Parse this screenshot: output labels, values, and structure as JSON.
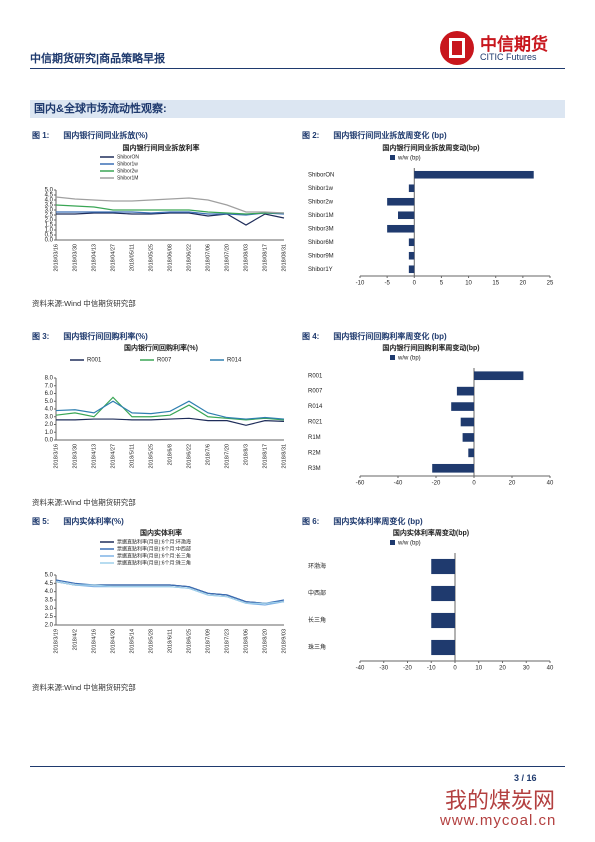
{
  "header": {
    "title": "中信期货研究|商品策略早报",
    "logo_cn": "中信期货",
    "logo_en": "CITIC Futures"
  },
  "section": "国内&全球市场流动性观察:",
  "figures": [
    {
      "label": "图 1:",
      "title": "国内银行间同业拆放(%)"
    },
    {
      "label": "图 2:",
      "title": "国内银行间同业拆放周变化 (bp)"
    },
    {
      "label": "图 3:",
      "title": "国内银行间回购利率(%)"
    },
    {
      "label": "图 4:",
      "title": "国内银行间回购利率周变化 (bp)"
    },
    {
      "label": "图 5:",
      "title": "国内实体利率(%)"
    },
    {
      "label": "图 6:",
      "title": "国内实体利率周变化 (bp)"
    }
  ],
  "sources": [
    "资料来源:Wind 中信期货研究部",
    "资料来源:Wind 中信期货研究部",
    "资料来源:Wind 中信期货研究部"
  ],
  "footer": {
    "page": "3 / 16"
  },
  "watermark": {
    "name": "我的煤炭网",
    "url": "www.mycoal.cn"
  },
  "chart_data": [
    {
      "type": "line",
      "title": "国内银行间同业拆放利率",
      "categories": [
        "2018/03/16",
        "2018/03/30",
        "2018/04/13",
        "2018/04/27",
        "2018/05/11",
        "2018/05/25",
        "2018/06/08",
        "2018/06/22",
        "2018/07/06",
        "2018/07/20",
        "2018/08/03",
        "2018/08/17",
        "2018/08/31"
      ],
      "series": [
        {
          "name": "ShiborON",
          "color": "#1f2d5a",
          "values": [
            2.6,
            2.6,
            2.7,
            2.7,
            2.6,
            2.6,
            2.7,
            2.7,
            2.4,
            2.6,
            1.5,
            2.6,
            2.2
          ]
        },
        {
          "name": "Shibor1w",
          "color": "#3b6fb6",
          "values": [
            2.8,
            2.8,
            2.8,
            2.8,
            2.8,
            2.7,
            2.8,
            2.8,
            2.6,
            2.6,
            2.5,
            2.7,
            2.6
          ]
        },
        {
          "name": "Shibor2w",
          "color": "#3aa655",
          "values": [
            3.5,
            3.4,
            3.3,
            3.0,
            3.0,
            3.0,
            3.0,
            3.0,
            2.8,
            2.7,
            2.6,
            2.7,
            2.7
          ]
        },
        {
          "name": "Shibor1M",
          "color": "#a0a0a0",
          "values": [
            4.3,
            4.1,
            4.0,
            3.9,
            3.9,
            4.0,
            4.1,
            4.2,
            4.0,
            3.5,
            2.8,
            2.8,
            2.7
          ]
        }
      ],
      "ylim": [
        0,
        5
      ],
      "yticks": [
        {
          "value": 0,
          "label": "0.0"
        },
        0.5,
        {
          "value": 1,
          "label": "1.0"
        },
        1.5,
        {
          "value": 2,
          "label": "2.0"
        },
        2.5,
        {
          "value": 3,
          "label": "3.0"
        },
        3.5,
        {
          "value": 4,
          "label": "4.0"
        },
        4.5,
        {
          "value": 5,
          "label": "5.0"
        }
      ]
    },
    {
      "type": "hbar",
      "title": "国内银行间同业拆放周变动(bp)",
      "categories": [
        "ShiborON",
        "Shibor1w",
        "Shibor2w",
        "Shibor1M",
        "Shibor3M",
        "Shibor6M",
        "Shibor9M",
        "Shibor1Y"
      ],
      "series": [
        {
          "name": "w/w (bp)",
          "color": "#1f3a6e",
          "values": [
            22,
            -1,
            -5,
            -3,
            -5,
            -1,
            -1,
            -1
          ]
        }
      ],
      "xlim": [
        -10,
        25
      ],
      "xticks": [
        -10,
        -5,
        0,
        5,
        10,
        15,
        20,
        25
      ]
    },
    {
      "type": "line",
      "title": "国内银行间回购利率(%)",
      "categories": [
        "2018/3/16",
        "2018/3/30",
        "2018/4/13",
        "2018/4/27",
        "2018/5/11",
        "2018/5/25",
        "2018/6/8",
        "2018/6/22",
        "2018/7/6",
        "2018/7/20",
        "2018/8/3",
        "2018/8/17",
        "2018/8/31"
      ],
      "series": [
        {
          "name": "R001",
          "color": "#1f2d5a",
          "values": [
            2.6,
            2.6,
            2.7,
            2.7,
            2.6,
            2.6,
            2.7,
            2.8,
            2.5,
            2.5,
            1.9,
            2.5,
            2.4
          ]
        },
        {
          "name": "R007",
          "color": "#3aa655",
          "values": [
            3.2,
            3.5,
            3.0,
            5.5,
            3.0,
            3.0,
            3.2,
            4.5,
            3.0,
            2.8,
            2.6,
            2.8,
            2.6
          ]
        },
        {
          "name": "R014",
          "color": "#2f7fb0",
          "values": [
            3.8,
            3.9,
            3.5,
            5.0,
            3.5,
            3.4,
            3.7,
            5.0,
            3.5,
            2.9,
            2.7,
            2.9,
            2.7
          ]
        }
      ],
      "ylim": [
        0,
        8
      ],
      "yticks": [
        {
          "value": 0,
          "label": "0.0"
        },
        {
          "value": 1,
          "label": "1.0"
        },
        {
          "value": 2,
          "label": "2.0"
        },
        {
          "value": 3,
          "label": "3.0"
        },
        {
          "value": 4,
          "label": "4.0"
        },
        {
          "value": 5,
          "label": "5.0"
        },
        {
          "value": 6,
          "label": "6.0"
        },
        {
          "value": 7,
          "label": "7.0"
        },
        {
          "value": 8,
          "label": "8.0"
        }
      ]
    },
    {
      "type": "hbar",
      "title": "国内银行间回购利率周变动(bp)",
      "categories": [
        "R001",
        "R007",
        "R014",
        "R021",
        "R1M",
        "R2M",
        "R3M"
      ],
      "series": [
        {
          "name": "w/w (bp)",
          "color": "#1f3a6e",
          "values": [
            26,
            -9,
            -12,
            -7,
            -6,
            -3,
            -22
          ]
        }
      ],
      "xlim": [
        -60,
        40
      ],
      "xticks": [
        -60,
        -40,
        -20,
        0,
        20,
        40
      ]
    },
    {
      "type": "line",
      "title": "国内实体利率",
      "categories": [
        "2018/3/19",
        "2018/4/2",
        "2018/4/16",
        "2018/4/30",
        "2018/5/14",
        "2018/5/28",
        "2018/6/11",
        "2018/6/25",
        "2018/7/09",
        "2018/7/23",
        "2018/8/06",
        "2018/8/20",
        "2018/9/03"
      ],
      "series": [
        {
          "name": "票据直贴利率(月息):6个月:环渤海",
          "color": "#1f2d5a",
          "values": [
            4.6,
            4.4,
            4.4,
            4.4,
            4.4,
            4.4,
            4.4,
            4.3,
            3.9,
            3.8,
            3.4,
            3.3,
            3.4
          ]
        },
        {
          "name": "票据直贴利率(月息):6个月:中西部",
          "color": "#3b6fb6",
          "values": [
            4.7,
            4.5,
            4.4,
            4.4,
            4.4,
            4.4,
            4.4,
            4.3,
            3.9,
            3.8,
            3.4,
            3.3,
            3.5
          ]
        },
        {
          "name": "票据直贴利率(月息):6个月:长三角",
          "color": "#7fb2e5",
          "values": [
            4.6,
            4.4,
            4.3,
            4.3,
            4.3,
            4.3,
            4.3,
            4.2,
            3.8,
            3.7,
            3.3,
            3.2,
            3.4
          ]
        },
        {
          "name": "票据直贴利率(月息):6个月:珠三角",
          "color": "#9fd0ea",
          "values": [
            4.6,
            4.4,
            4.4,
            4.3,
            4.3,
            4.3,
            4.3,
            4.2,
            3.8,
            3.7,
            3.3,
            3.3,
            3.4
          ]
        }
      ],
      "ylim": [
        2,
        5
      ],
      "yticks": [
        {
          "value": 2,
          "label": "2.0"
        },
        2.5,
        {
          "value": 3,
          "label": "3.0"
        },
        3.5,
        {
          "value": 4,
          "label": "4.0"
        },
        4.5,
        {
          "value": 5,
          "label": "5.0"
        }
      ]
    },
    {
      "type": "hbar",
      "title": "国内实体利率周变动(bp)",
      "categories": [
        "环渤海",
        "中西部",
        "长三角",
        "珠三角"
      ],
      "series": [
        {
          "name": "w/w (bp)",
          "color": "#1f3a6e",
          "values": [
            -10,
            -10,
            -10,
            -10
          ]
        }
      ],
      "xlim": [
        -40,
        40
      ],
      "xticks": [
        -40,
        -30,
        -20,
        -10,
        0,
        10,
        20,
        30,
        40
      ]
    }
  ]
}
